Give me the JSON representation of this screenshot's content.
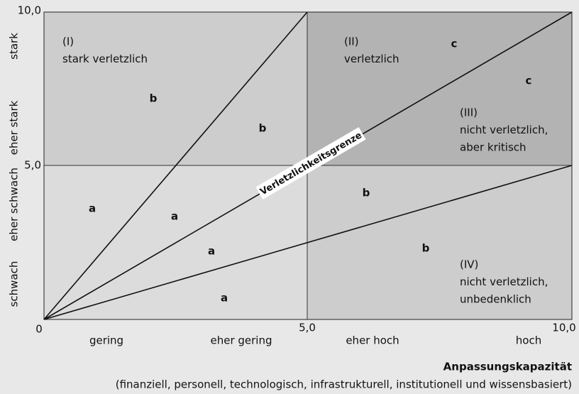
{
  "y_axis": {
    "ticks": [
      "10,0",
      "5,0",
      "0"
    ],
    "categories": [
      "stark",
      "eher stark",
      "eher schwach",
      "schwach"
    ]
  },
  "x_axis": {
    "ticks": [
      "5,0",
      "10,0"
    ],
    "categories": [
      "gering",
      "eher gering",
      "eher hoch",
      "hoch"
    ],
    "title": "Anpassungskapazität",
    "subtitle": "(finanziell, personell, technologisch, infrastrukturell, institutionell und wissensbasiert)"
  },
  "regions": [
    {
      "lines": [
        "(I)",
        "stark verletzlich"
      ]
    },
    {
      "lines": [
        "(II)",
        "verletzlich"
      ]
    },
    {
      "lines": [
        "(III)",
        "nicht verletzlich,",
        "aber kritisch"
      ]
    },
    {
      "lines": [
        "(IV)",
        "nicht verletzlich,",
        "unbedenklich"
      ]
    }
  ],
  "boundary_label": "Verletzlichkeitsgrenze",
  "letters": [
    "b",
    "b",
    "c",
    "c",
    "a",
    "a",
    "b",
    "a",
    "b",
    "a"
  ]
}
